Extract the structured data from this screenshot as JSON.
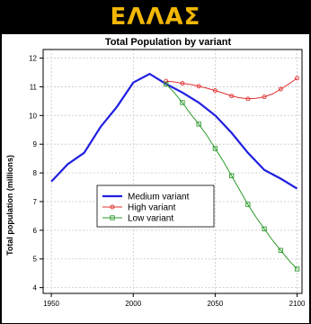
{
  "banner": {
    "title": "ΕΛΛΑΣ",
    "color": "#f2b705"
  },
  "chart_data": {
    "type": "line",
    "title": "Total Population by variant",
    "xlabel": "",
    "ylabel": "Total population (millions)",
    "xlim": [
      1945,
      2103
    ],
    "ylim": [
      3.8,
      12.3
    ],
    "xticks": [
      1950,
      2000,
      2050,
      2100
    ],
    "yticks": [
      4,
      5,
      6,
      7,
      8,
      9,
      10,
      11,
      12
    ],
    "grid": true,
    "legend_position": "lower-left",
    "series": [
      {
        "name": "Medium variant",
        "color": "#1f1fe0",
        "marker": "none",
        "width": 2.2,
        "x": [
          1950,
          1960,
          1970,
          1980,
          1990,
          2000,
          2010,
          2020,
          2030,
          2040,
          2050,
          2060,
          2070,
          2080,
          2090,
          2100
        ],
        "y": [
          7.7,
          8.3,
          8.7,
          9.6,
          10.3,
          11.15,
          11.45,
          11.1,
          10.8,
          10.45,
          10.0,
          9.4,
          8.7,
          8.1,
          7.8,
          7.45
        ]
      },
      {
        "name": "High variant",
        "color": "#e03030",
        "marker": "circle",
        "width": 1,
        "x": [
          2020,
          2025,
          2030,
          2035,
          2040,
          2045,
          2050,
          2055,
          2060,
          2065,
          2070,
          2075,
          2080,
          2085,
          2090,
          2095,
          2100
        ],
        "y": [
          11.2,
          11.17,
          11.12,
          11.08,
          11.02,
          10.95,
          10.87,
          10.78,
          10.68,
          10.62,
          10.58,
          10.6,
          10.65,
          10.75,
          10.92,
          11.1,
          11.3
        ]
      },
      {
        "name": "Low variant",
        "color": "#2a9a2a",
        "marker": "square",
        "width": 1,
        "x": [
          2020,
          2025,
          2030,
          2035,
          2040,
          2045,
          2050,
          2055,
          2060,
          2065,
          2070,
          2075,
          2080,
          2085,
          2090,
          2095,
          2100
        ],
        "y": [
          11.1,
          10.8,
          10.45,
          10.05,
          9.7,
          9.3,
          8.85,
          8.4,
          7.9,
          7.4,
          6.9,
          6.45,
          6.05,
          5.65,
          5.3,
          4.95,
          4.65
        ]
      }
    ]
  }
}
